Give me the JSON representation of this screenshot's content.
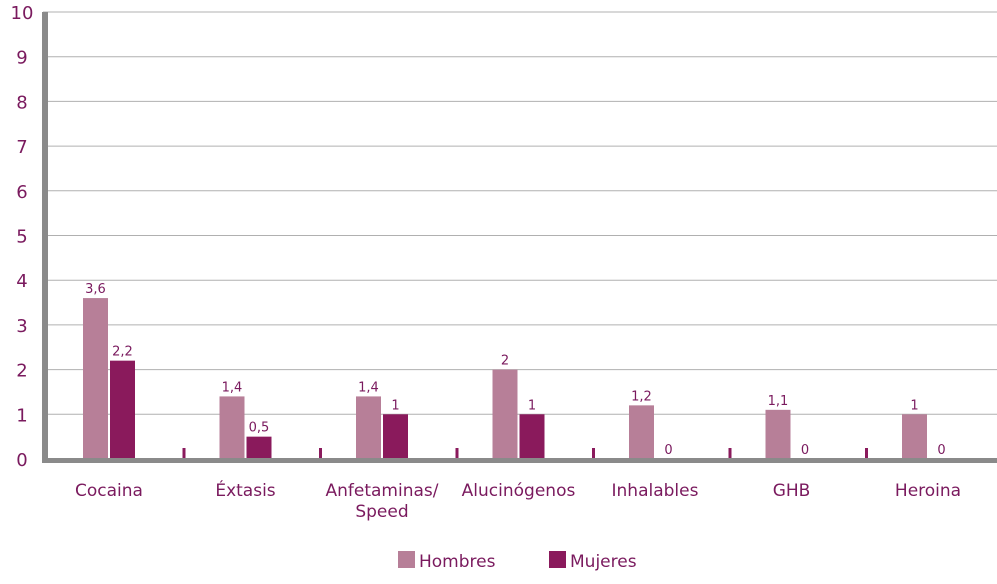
{
  "chart_data": {
    "type": "bar",
    "categories": [
      [
        "Cocaina"
      ],
      [
        "Éxtasis"
      ],
      [
        "Anfetaminas/",
        "Speed"
      ],
      [
        "Alucinógenos"
      ],
      [
        "Inhalables"
      ],
      [
        "GHB"
      ],
      [
        "Heroina"
      ]
    ],
    "series": [
      {
        "name": "Hombres",
        "color": "#b77f98",
        "values": [
          3.6,
          1.4,
          1.4,
          2,
          1.2,
          1.1,
          1
        ],
        "labels": [
          "3,6",
          "1,4",
          "1,4",
          "2",
          "1,2",
          "1,1",
          "1"
        ]
      },
      {
        "name": "Mujeres",
        "color": "#8a1a5c",
        "values": [
          2.2,
          0.5,
          1,
          1,
          0,
          0,
          0
        ],
        "labels": [
          "2,2",
          "0,5",
          "1",
          "1",
          "0",
          "0",
          "0"
        ]
      }
    ],
    "ylim": [
      0,
      10
    ],
    "yticks": [
      0,
      1,
      2,
      3,
      4,
      5,
      6,
      7,
      8,
      9,
      10
    ],
    "grid": true,
    "legend_position": "bottom-center",
    "axis_color": "#8a8a8a",
    "grid_color": "#b0b0b0",
    "text_color": "#7a1a5e"
  }
}
